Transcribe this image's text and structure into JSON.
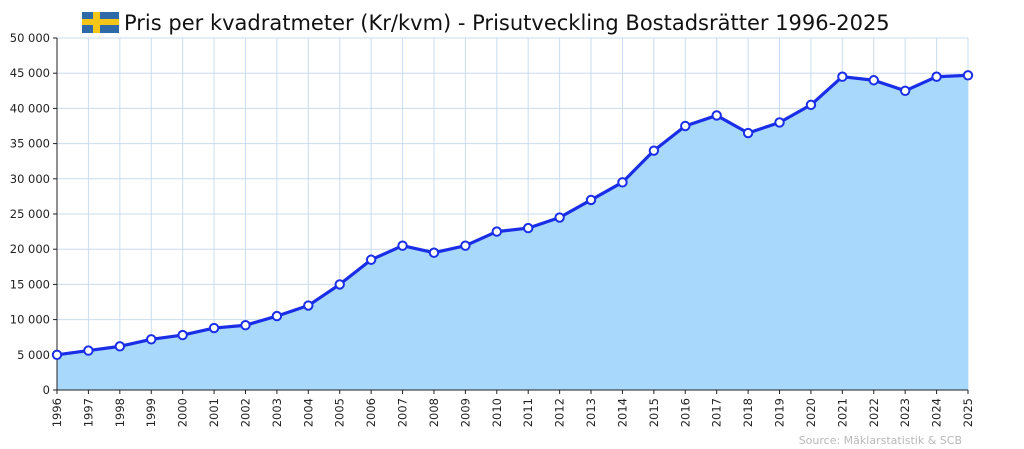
{
  "chart_data": {
    "type": "area",
    "title": "Pris per kvadratmeter (Kr/kvm) - Prisutveckling Bostadsrätter 1996-2025",
    "source": "Source: Mäklarstatistik & SCB",
    "x": [
      "1996",
      "1997",
      "1998",
      "1999",
      "2000",
      "2001",
      "2002",
      "2003",
      "2004",
      "2005",
      "2006",
      "2007",
      "2008",
      "2009",
      "2010",
      "2011",
      "2012",
      "2013",
      "2014",
      "2015",
      "2016",
      "2017",
      "2018",
      "2019",
      "2020",
      "2021",
      "2022",
      "2023",
      "2024",
      "2025"
    ],
    "values": [
      5000,
      5600,
      6200,
      7200,
      7800,
      8800,
      9200,
      10500,
      12000,
      15000,
      18500,
      20500,
      19500,
      20500,
      22500,
      23000,
      24500,
      27000,
      29500,
      34000,
      37500,
      39000,
      36500,
      38000,
      40500,
      44500,
      44000,
      42500,
      44500,
      44700
    ],
    "yticks": [
      "0",
      "5 000",
      "10 000",
      "15 000",
      "20 000",
      "25 000",
      "30 000",
      "35 000",
      "40 000",
      "45 000",
      "50 000"
    ],
    "ylim": [
      0,
      50000
    ],
    "grid": true,
    "colors": {
      "line": "#1a2ee8",
      "fill": "#a8d8fb",
      "grid": "#c9dcef",
      "marker_fill": "#ffffff",
      "flag_blue": "#2e6aa8",
      "flag_yellow": "#f5c518"
    }
  }
}
